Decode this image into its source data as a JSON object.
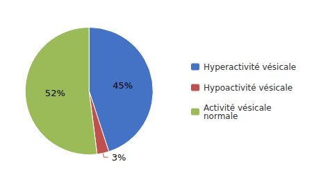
{
  "chart_data": {
    "type": "pie",
    "categories": [
      "Hyperactivité vésicale",
      "Hypoactivité vésicale",
      "Activité vésicale\nnormale"
    ],
    "values": [
      45,
      3,
      52
    ],
    "value_labels": [
      "45%",
      "3%",
      "52%"
    ],
    "data_labels": true,
    "colors": [
      "#4472c4",
      "#c0504d",
      "#9bbb59"
    ],
    "legend": "right"
  }
}
